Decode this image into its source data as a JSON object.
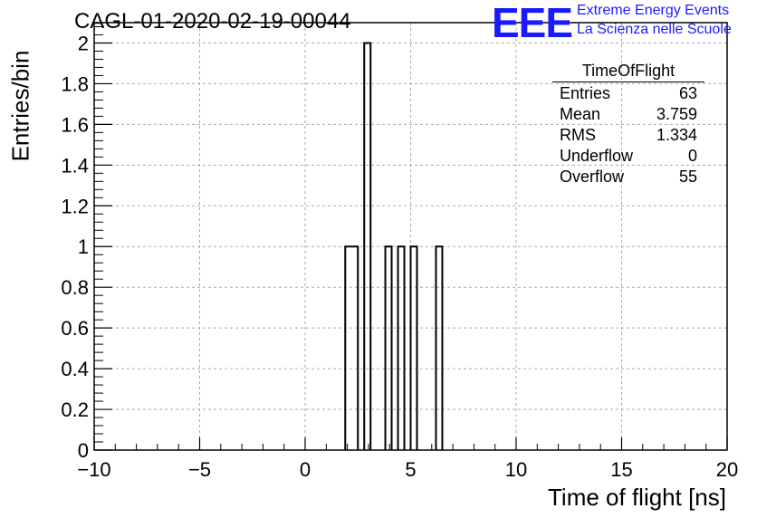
{
  "chart_data": {
    "type": "bar",
    "title": "CAGL-01-2020-02-19-00044",
    "xlabel": "Time of flight [ns]",
    "ylabel": "Entries/bin",
    "xlim": [
      -10,
      20
    ],
    "ylim": [
      0,
      2.1
    ],
    "x_ticks": [
      "−10",
      "−5",
      "0",
      "5",
      "10",
      "15",
      "20"
    ],
    "y_ticks": [
      "0",
      "0.2",
      "0.4",
      "0.6",
      "0.8",
      "1",
      "1.2",
      "1.4",
      "1.6",
      "1.8",
      "2"
    ],
    "grid": true,
    "bins": [
      {
        "x_low": 1.9,
        "x_high": 2.5,
        "value": 1
      },
      {
        "x_low": 2.8,
        "x_high": 3.1,
        "value": 2
      },
      {
        "x_low": 3.8,
        "x_high": 4.1,
        "value": 1
      },
      {
        "x_low": 4.4,
        "x_high": 4.7,
        "value": 1
      },
      {
        "x_low": 5.0,
        "x_high": 5.3,
        "value": 1
      },
      {
        "x_low": 6.2,
        "x_high": 6.5,
        "value": 1
      }
    ],
    "stats_box": {
      "title": "TimeOfFlight",
      "rows": [
        {
          "label": "Entries",
          "value": "63"
        },
        {
          "label": "Mean",
          "value": "3.759"
        },
        {
          "label": "RMS",
          "value": "1.334"
        },
        {
          "label": "Underflow",
          "value": "0"
        },
        {
          "label": "Overflow",
          "value": "55"
        }
      ]
    }
  },
  "logo": {
    "mark": "EEE",
    "line1": "Extreme Energy Events",
    "line2": "La Scienza nelle Scuole",
    "color": "#1a1aff"
  }
}
